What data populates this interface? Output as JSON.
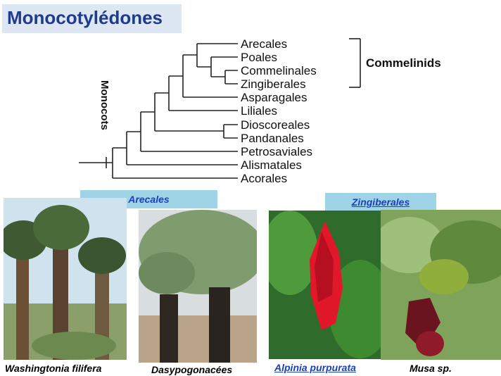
{
  "title": "Monocotylédones",
  "tree": {
    "clade_label": "Monocots",
    "group_label": "Commelinids",
    "taxa": [
      "Arecales",
      "Poales",
      "Commelinales",
      "Zingiberales",
      "Asparagales",
      "Liliales",
      "Dioscoreales",
      "Pandanales",
      "Petrosaviales",
      "Alismatales",
      "Acorales"
    ]
  },
  "photo_groups": {
    "arecales": "Arecales",
    "zingiberales": "Zingiberales"
  },
  "captions": {
    "washingtonia": "Washingtonia filifera",
    "dasypogon": "Dasypogonacées",
    "alpinia": "Alpinia purpurata",
    "musa": "Musa sp."
  }
}
